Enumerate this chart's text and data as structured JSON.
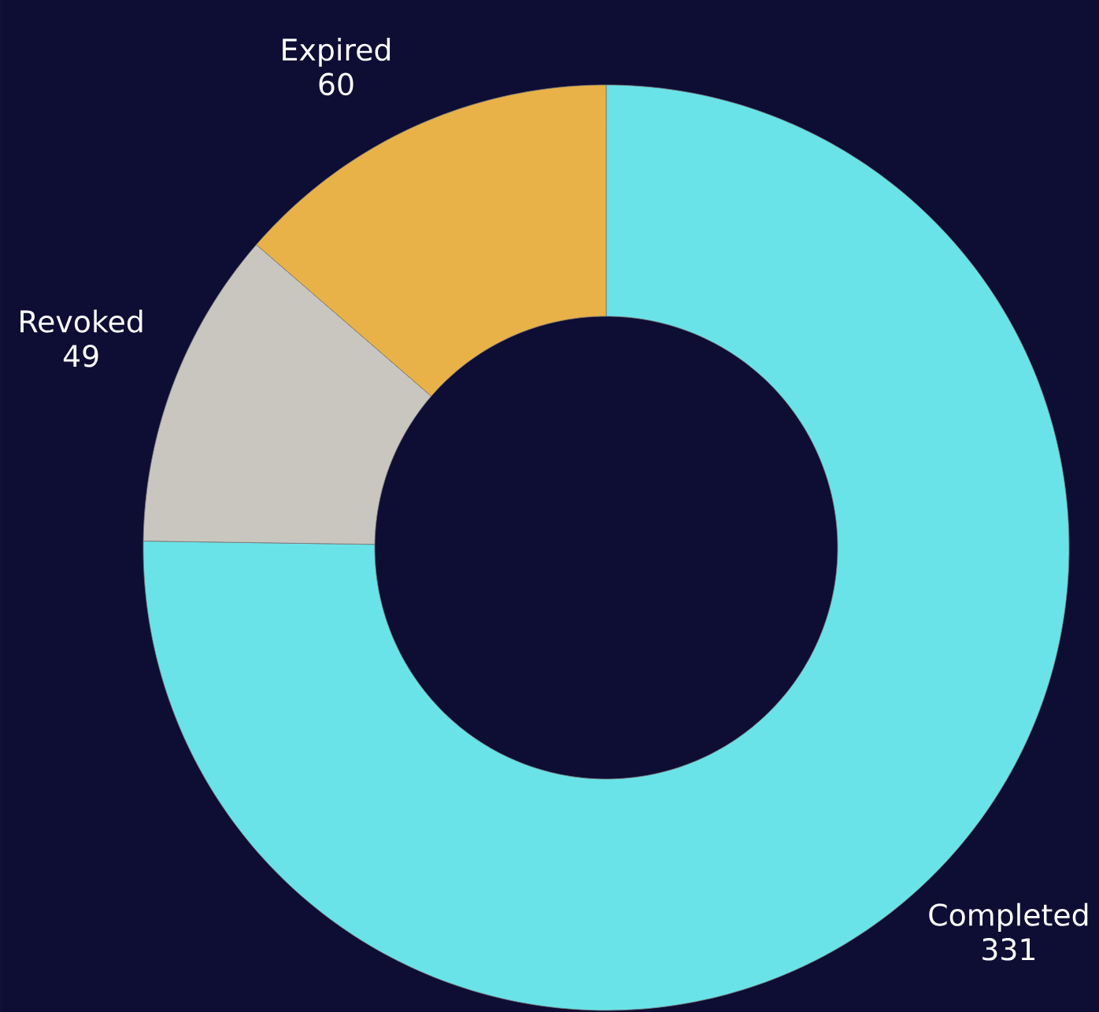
{
  "chart_data": {
    "type": "donut",
    "categories": [
      "Completed",
      "Revoked",
      "Expired"
    ],
    "values": [
      331,
      49,
      60
    ],
    "colors": [
      "#6ae3e8",
      "#c8c6be",
      "#e8b248"
    ],
    "data_labels": true
  }
}
